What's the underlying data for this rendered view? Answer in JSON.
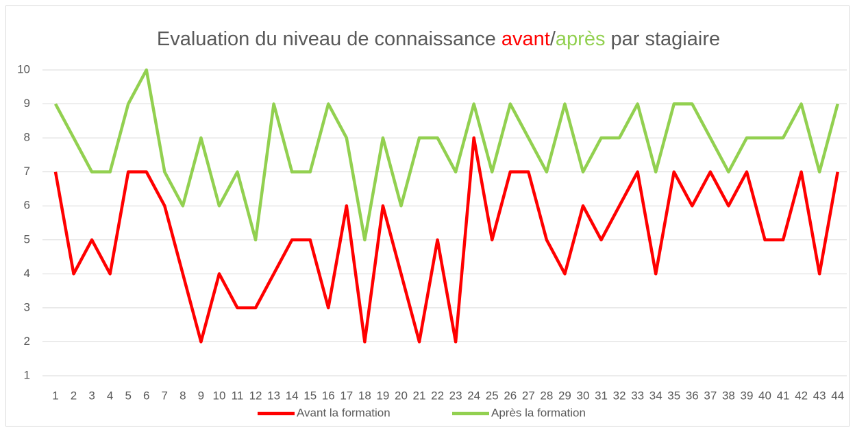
{
  "chart_data": {
    "type": "line",
    "title": [
      "Evaluation du niveau de connaissance ",
      "avant",
      "/",
      "après",
      " par stagiaire"
    ],
    "title_colors": [
      "#595959",
      "#ff0000",
      "#595959",
      "#92d050",
      "#595959"
    ],
    "categories": [
      1,
      2,
      3,
      4,
      5,
      6,
      7,
      8,
      9,
      10,
      11,
      12,
      13,
      14,
      15,
      16,
      17,
      18,
      19,
      20,
      21,
      22,
      23,
      24,
      25,
      26,
      27,
      28,
      29,
      30,
      31,
      32,
      33,
      34,
      35,
      36,
      37,
      38,
      39,
      40,
      41,
      42,
      43,
      44
    ],
    "series": [
      {
        "name": "Avant la formation",
        "color": "#ff0000",
        "values": [
          7,
          4,
          5,
          4,
          7,
          7,
          6,
          4,
          2,
          4,
          3,
          3,
          4,
          5,
          5,
          3,
          6,
          2,
          6,
          4,
          2,
          5,
          2,
          8,
          5,
          7,
          7,
          5,
          4,
          6,
          5,
          6,
          7,
          4,
          7,
          6,
          7,
          6,
          7,
          5,
          5,
          7,
          4,
          7
        ]
      },
      {
        "name": "Après la formation",
        "color": "#92d050",
        "values": [
          9,
          8,
          7,
          7,
          9,
          10,
          7,
          6,
          8,
          6,
          7,
          5,
          9,
          7,
          7,
          9,
          8,
          5,
          8,
          6,
          8,
          8,
          7,
          9,
          7,
          9,
          8,
          7,
          9,
          7,
          8,
          8,
          9,
          7,
          9,
          9,
          8,
          7,
          8,
          8,
          8,
          9,
          7,
          9
        ]
      }
    ],
    "ylim": [
      1,
      10
    ],
    "yticks": [
      1,
      2,
      3,
      4,
      5,
      6,
      7,
      8,
      9,
      10
    ],
    "grid": true,
    "legend": "bottom"
  }
}
